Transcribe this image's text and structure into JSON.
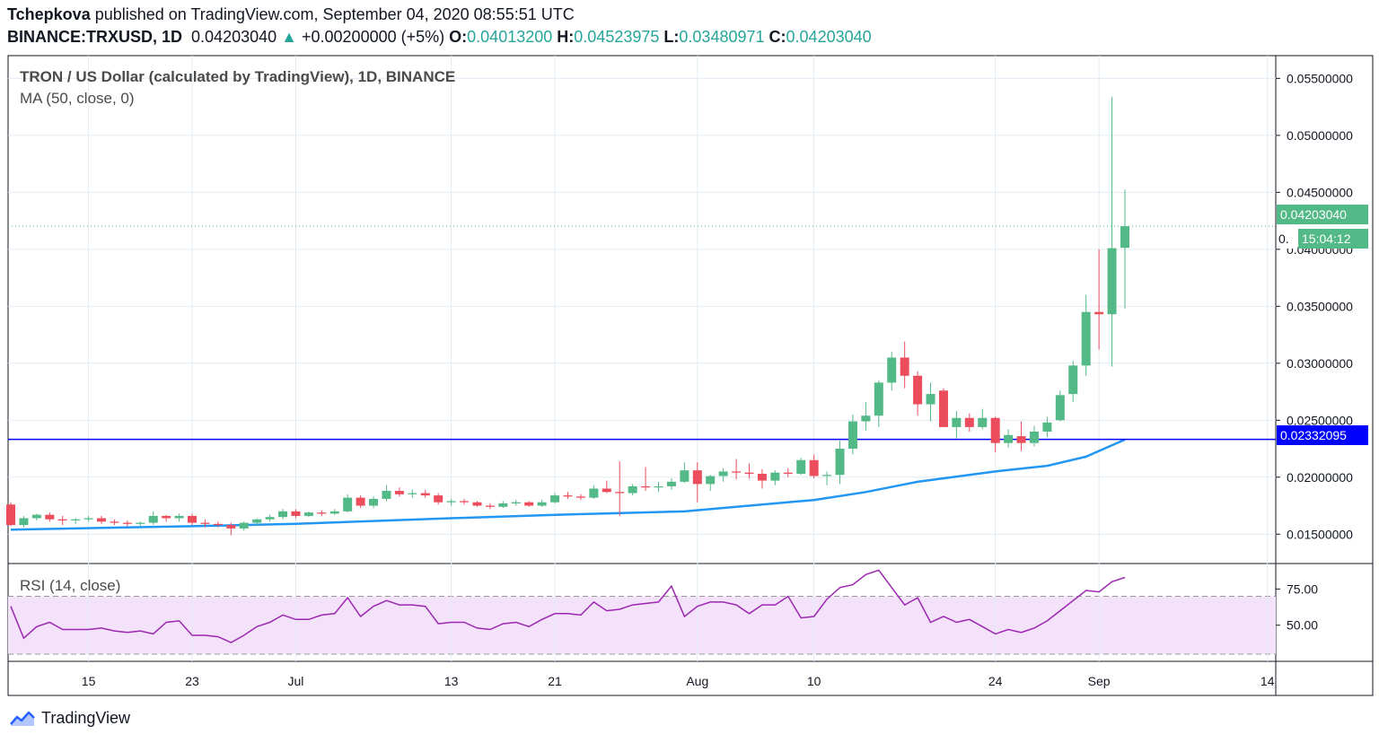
{
  "header": {
    "author": "Tchepkova",
    "published_text": "published on TradingView.com, September 04, 2020 08:55:51 UTC",
    "symbol": "BINANCE:TRXUSD, 1D",
    "last_price": "0.04203040",
    "change": "+0.00200000 (+5%)",
    "o_label": "O:",
    "o_value": "0.04013200",
    "h_label": "H:",
    "h_value": "0.04523975",
    "l_label": "L:",
    "l_value": "0.03480971",
    "c_label": "C:",
    "c_value": "0.04203040"
  },
  "legend": {
    "title": "TRON / US Dollar (calculated by TradingView), 1D, BINANCE",
    "ma": "MA (50, close, 0)",
    "rsi": "RSI (14, close)"
  },
  "price_tags": {
    "last": "0.04203040",
    "countdown": "15:04:12",
    "countdown_prefix": "0.",
    "hline": "0.02332095"
  },
  "footer": {
    "brand": "TradingView"
  },
  "colors": {
    "up": "#53b987",
    "down": "#eb4d5c",
    "ma": "#2196f3",
    "hline": "#0000ff",
    "rsi": "#9c27b0",
    "rsi_band": "#f3e2fa"
  },
  "chart_data": {
    "type": "candlestick",
    "x_ticks": [
      "15",
      "23",
      "Jul",
      "13",
      "21",
      "Aug",
      "10",
      "24",
      "Sep",
      "14"
    ],
    "y_ticks": [
      "0.05500000",
      "0.05000000",
      "0.04500000",
      "0.04000000",
      "0.03500000",
      "0.03000000",
      "0.02500000",
      "0.02000000",
      "0.01500000"
    ],
    "y_range": [
      0.0125,
      0.057
    ],
    "horizontal_line": 0.02332095,
    "candles": [
      {
        "date": "2020-06-09",
        "o": 0.0176,
        "h": 0.0178,
        "l": 0.0157,
        "c": 0.0158
      },
      {
        "date": "2020-06-10",
        "o": 0.0158,
        "h": 0.0166,
        "l": 0.0156,
        "c": 0.0164
      },
      {
        "date": "2020-06-11",
        "o": 0.0164,
        "h": 0.0168,
        "l": 0.0162,
        "c": 0.0167
      },
      {
        "date": "2020-06-12",
        "o": 0.0167,
        "h": 0.0169,
        "l": 0.0161,
        "c": 0.0163
      },
      {
        "date": "2020-06-13",
        "o": 0.0163,
        "h": 0.0166,
        "l": 0.0158,
        "c": 0.0162
      },
      {
        "date": "2020-06-14",
        "o": 0.0162,
        "h": 0.0164,
        "l": 0.0159,
        "c": 0.0163
      },
      {
        "date": "2020-06-15",
        "o": 0.0163,
        "h": 0.0166,
        "l": 0.0161,
        "c": 0.0164
      },
      {
        "date": "2020-06-16",
        "o": 0.0164,
        "h": 0.0166,
        "l": 0.0159,
        "c": 0.0161
      },
      {
        "date": "2020-06-17",
        "o": 0.0161,
        "h": 0.0163,
        "l": 0.0158,
        "c": 0.016
      },
      {
        "date": "2020-06-18",
        "o": 0.016,
        "h": 0.0162,
        "l": 0.0157,
        "c": 0.0159
      },
      {
        "date": "2020-06-19",
        "o": 0.0159,
        "h": 0.0161,
        "l": 0.0157,
        "c": 0.016
      },
      {
        "date": "2020-06-20",
        "o": 0.016,
        "h": 0.017,
        "l": 0.0158,
        "c": 0.0166
      },
      {
        "date": "2020-06-21",
        "o": 0.0166,
        "h": 0.0167,
        "l": 0.0161,
        "c": 0.0164
      },
      {
        "date": "2020-06-22",
        "o": 0.0164,
        "h": 0.0168,
        "l": 0.0161,
        "c": 0.0166
      },
      {
        "date": "2020-06-23",
        "o": 0.0166,
        "h": 0.0168,
        "l": 0.0158,
        "c": 0.016
      },
      {
        "date": "2020-06-24",
        "o": 0.016,
        "h": 0.0163,
        "l": 0.0156,
        "c": 0.0159
      },
      {
        "date": "2020-06-25",
        "o": 0.0159,
        "h": 0.0161,
        "l": 0.0156,
        "c": 0.0158
      },
      {
        "date": "2020-06-26",
        "o": 0.0158,
        "h": 0.016,
        "l": 0.0149,
        "c": 0.0155
      },
      {
        "date": "2020-06-27",
        "o": 0.0155,
        "h": 0.0161,
        "l": 0.0153,
        "c": 0.016
      },
      {
        "date": "2020-06-28",
        "o": 0.016,
        "h": 0.0164,
        "l": 0.0157,
        "c": 0.0163
      },
      {
        "date": "2020-06-29",
        "o": 0.0163,
        "h": 0.0167,
        "l": 0.0161,
        "c": 0.0165
      },
      {
        "date": "2020-06-30",
        "o": 0.0165,
        "h": 0.0172,
        "l": 0.0163,
        "c": 0.017
      },
      {
        "date": "2020-07-01",
        "o": 0.017,
        "h": 0.0172,
        "l": 0.0164,
        "c": 0.0166
      },
      {
        "date": "2020-07-02",
        "o": 0.0166,
        "h": 0.017,
        "l": 0.0165,
        "c": 0.0169
      },
      {
        "date": "2020-07-03",
        "o": 0.0169,
        "h": 0.0171,
        "l": 0.0166,
        "c": 0.0168
      },
      {
        "date": "2020-07-04",
        "o": 0.0168,
        "h": 0.0172,
        "l": 0.0167,
        "c": 0.017
      },
      {
        "date": "2020-07-05",
        "o": 0.017,
        "h": 0.0185,
        "l": 0.0169,
        "c": 0.0182
      },
      {
        "date": "2020-07-06",
        "o": 0.0182,
        "h": 0.0184,
        "l": 0.0173,
        "c": 0.0175
      },
      {
        "date": "2020-07-07",
        "o": 0.0175,
        "h": 0.0183,
        "l": 0.0173,
        "c": 0.0181
      },
      {
        "date": "2020-07-08",
        "o": 0.0181,
        "h": 0.0193,
        "l": 0.0179,
        "c": 0.0188
      },
      {
        "date": "2020-07-09",
        "o": 0.0188,
        "h": 0.0191,
        "l": 0.0183,
        "c": 0.0185
      },
      {
        "date": "2020-07-10",
        "o": 0.0185,
        "h": 0.0189,
        "l": 0.0182,
        "c": 0.0186
      },
      {
        "date": "2020-07-11",
        "o": 0.0186,
        "h": 0.0189,
        "l": 0.0182,
        "c": 0.0184
      },
      {
        "date": "2020-07-12",
        "o": 0.0184,
        "h": 0.0186,
        "l": 0.0176,
        "c": 0.0178
      },
      {
        "date": "2020-07-13",
        "o": 0.0178,
        "h": 0.0181,
        "l": 0.0175,
        "c": 0.0179
      },
      {
        "date": "2020-07-14",
        "o": 0.0179,
        "h": 0.0181,
        "l": 0.0176,
        "c": 0.0178
      },
      {
        "date": "2020-07-15",
        "o": 0.0178,
        "h": 0.0179,
        "l": 0.0174,
        "c": 0.0175
      },
      {
        "date": "2020-07-16",
        "o": 0.0175,
        "h": 0.0177,
        "l": 0.0172,
        "c": 0.0174
      },
      {
        "date": "2020-07-17",
        "o": 0.0174,
        "h": 0.0179,
        "l": 0.0173,
        "c": 0.0177
      },
      {
        "date": "2020-07-18",
        "o": 0.0177,
        "h": 0.018,
        "l": 0.0175,
        "c": 0.0178
      },
      {
        "date": "2020-07-19",
        "o": 0.0178,
        "h": 0.0179,
        "l": 0.0174,
        "c": 0.0175
      },
      {
        "date": "2020-07-20",
        "o": 0.0175,
        "h": 0.018,
        "l": 0.0174,
        "c": 0.0178
      },
      {
        "date": "2020-07-21",
        "o": 0.0178,
        "h": 0.0186,
        "l": 0.0177,
        "c": 0.0184
      },
      {
        "date": "2020-07-22",
        "o": 0.0184,
        "h": 0.0187,
        "l": 0.0181,
        "c": 0.0183
      },
      {
        "date": "2020-07-23",
        "o": 0.0183,
        "h": 0.0185,
        "l": 0.018,
        "c": 0.0182
      },
      {
        "date": "2020-07-24",
        "o": 0.0182,
        "h": 0.0193,
        "l": 0.0181,
        "c": 0.019
      },
      {
        "date": "2020-07-25",
        "o": 0.019,
        "h": 0.0197,
        "l": 0.0186,
        "c": 0.0187
      },
      {
        "date": "2020-07-26",
        "o": 0.0187,
        "h": 0.0214,
        "l": 0.0166,
        "c": 0.0186
      },
      {
        "date": "2020-07-27",
        "o": 0.0186,
        "h": 0.0194,
        "l": 0.0184,
        "c": 0.0192
      },
      {
        "date": "2020-07-28",
        "o": 0.0192,
        "h": 0.0209,
        "l": 0.0188,
        "c": 0.0191
      },
      {
        "date": "2020-07-29",
        "o": 0.0191,
        "h": 0.0196,
        "l": 0.0187,
        "c": 0.0192
      },
      {
        "date": "2020-07-30",
        "o": 0.0192,
        "h": 0.0199,
        "l": 0.0189,
        "c": 0.0196
      },
      {
        "date": "2020-07-31",
        "o": 0.0196,
        "h": 0.0213,
        "l": 0.0195,
        "c": 0.0206
      },
      {
        "date": "2020-08-01",
        "o": 0.0206,
        "h": 0.0213,
        "l": 0.0178,
        "c": 0.0194
      },
      {
        "date": "2020-08-02",
        "o": 0.0194,
        "h": 0.0202,
        "l": 0.0188,
        "c": 0.0201
      },
      {
        "date": "2020-08-03",
        "o": 0.0201,
        "h": 0.0208,
        "l": 0.0196,
        "c": 0.0205
      },
      {
        "date": "2020-08-04",
        "o": 0.0205,
        "h": 0.0216,
        "l": 0.0198,
        "c": 0.0204
      },
      {
        "date": "2020-08-05",
        "o": 0.0204,
        "h": 0.0212,
        "l": 0.0199,
        "c": 0.0203
      },
      {
        "date": "2020-08-06",
        "o": 0.0203,
        "h": 0.0207,
        "l": 0.019,
        "c": 0.0197
      },
      {
        "date": "2020-08-07",
        "o": 0.0197,
        "h": 0.0206,
        "l": 0.0193,
        "c": 0.0204
      },
      {
        "date": "2020-08-08",
        "o": 0.0204,
        "h": 0.0208,
        "l": 0.02,
        "c": 0.0203
      },
      {
        "date": "2020-08-09",
        "o": 0.0203,
        "h": 0.0217,
        "l": 0.0202,
        "c": 0.0215
      },
      {
        "date": "2020-08-10",
        "o": 0.0215,
        "h": 0.022,
        "l": 0.0199,
        "c": 0.0201
      },
      {
        "date": "2020-08-11",
        "o": 0.0201,
        "h": 0.0205,
        "l": 0.0193,
        "c": 0.0202
      },
      {
        "date": "2020-08-12",
        "o": 0.0202,
        "h": 0.0232,
        "l": 0.0194,
        "c": 0.0225
      },
      {
        "date": "2020-08-13",
        "o": 0.0225,
        "h": 0.0255,
        "l": 0.022,
        "c": 0.0249
      },
      {
        "date": "2020-08-14",
        "o": 0.0249,
        "h": 0.0266,
        "l": 0.0241,
        "c": 0.0254
      },
      {
        "date": "2020-08-15",
        "o": 0.0254,
        "h": 0.0285,
        "l": 0.0244,
        "c": 0.0283
      },
      {
        "date": "2020-08-16",
        "o": 0.0283,
        "h": 0.031,
        "l": 0.0276,
        "c": 0.0305
      },
      {
        "date": "2020-08-17",
        "o": 0.0305,
        "h": 0.0319,
        "l": 0.0278,
        "c": 0.0289
      },
      {
        "date": "2020-08-18",
        "o": 0.0289,
        "h": 0.0293,
        "l": 0.0254,
        "c": 0.0264
      },
      {
        "date": "2020-08-19",
        "o": 0.0264,
        "h": 0.0283,
        "l": 0.0249,
        "c": 0.0273
      },
      {
        "date": "2020-08-20",
        "o": 0.0276,
        "h": 0.0278,
        "l": 0.0244,
        "c": 0.0244
      },
      {
        "date": "2020-08-21",
        "o": 0.0244,
        "h": 0.0258,
        "l": 0.0234,
        "c": 0.0252
      },
      {
        "date": "2020-08-22",
        "o": 0.0252,
        "h": 0.0256,
        "l": 0.024,
        "c": 0.0244
      },
      {
        "date": "2020-08-23",
        "o": 0.0244,
        "h": 0.026,
        "l": 0.0242,
        "c": 0.0252
      },
      {
        "date": "2020-08-24",
        "o": 0.0252,
        "h": 0.0253,
        "l": 0.0222,
        "c": 0.023
      },
      {
        "date": "2020-08-25",
        "o": 0.023,
        "h": 0.0242,
        "l": 0.0226,
        "c": 0.0237
      },
      {
        "date": "2020-08-26",
        "o": 0.0236,
        "h": 0.0249,
        "l": 0.0223,
        "c": 0.023
      },
      {
        "date": "2020-08-27",
        "o": 0.023,
        "h": 0.0245,
        "l": 0.0227,
        "c": 0.024
      },
      {
        "date": "2020-08-28",
        "o": 0.024,
        "h": 0.0253,
        "l": 0.0235,
        "c": 0.0248
      },
      {
        "date": "2020-08-29",
        "o": 0.025,
        "h": 0.0276,
        "l": 0.0249,
        "c": 0.0272
      },
      {
        "date": "2020-08-30",
        "o": 0.0273,
        "h": 0.0302,
        "l": 0.0266,
        "c": 0.0298
      },
      {
        "date": "2020-08-31",
        "o": 0.0298,
        "h": 0.036,
        "l": 0.0289,
        "c": 0.0345
      },
      {
        "date": "2020-09-01",
        "o": 0.0345,
        "h": 0.04,
        "l": 0.0312,
        "c": 0.0343
      },
      {
        "date": "2020-09-02",
        "o": 0.0343,
        "h": 0.0534,
        "l": 0.0297,
        "c": 0.0401
      },
      {
        "date": "2020-09-03",
        "o": 0.040132,
        "h": 0.04523975,
        "l": 0.03480971,
        "c": 0.0420304
      }
    ],
    "ma50": [
      {
        "date": "2020-06-09",
        "v": 0.0154
      },
      {
        "date": "2020-06-23",
        "v": 0.0157
      },
      {
        "date": "2020-07-01",
        "v": 0.0159
      },
      {
        "date": "2020-07-13",
        "v": 0.0164
      },
      {
        "date": "2020-07-21",
        "v": 0.0167
      },
      {
        "date": "2020-07-31",
        "v": 0.017
      },
      {
        "date": "2020-08-10",
        "v": 0.018
      },
      {
        "date": "2020-08-14",
        "v": 0.0187
      },
      {
        "date": "2020-08-18",
        "v": 0.0196
      },
      {
        "date": "2020-08-24",
        "v": 0.0205
      },
      {
        "date": "2020-08-28",
        "v": 0.021
      },
      {
        "date": "2020-08-31",
        "v": 0.0218
      },
      {
        "date": "2020-09-03",
        "v": 0.0233
      }
    ],
    "rsi": {
      "y_ticks": [
        "75.00",
        "50.00"
      ],
      "overbought": 70,
      "oversold": 30,
      "values": [
        63,
        41,
        49,
        52,
        47,
        47,
        47,
        48,
        46,
        45,
        46,
        44,
        52,
        53,
        43,
        43,
        42,
        38,
        43,
        49,
        52,
        57,
        54,
        54,
        57,
        58,
        69,
        56,
        63,
        67,
        64,
        64,
        63,
        51,
        52,
        52,
        48,
        47,
        51,
        52,
        49,
        54,
        58,
        58,
        57,
        66,
        60,
        61,
        64,
        65,
        66,
        77,
        56,
        63,
        66,
        66,
        64,
        58,
        64,
        64,
        70,
        55,
        56,
        68,
        76,
        78,
        85,
        88,
        76,
        64,
        69,
        52,
        56,
        52,
        54,
        49,
        44,
        47,
        45,
        48,
        53,
        60,
        67,
        74,
        73,
        80,
        83
      ]
    }
  }
}
